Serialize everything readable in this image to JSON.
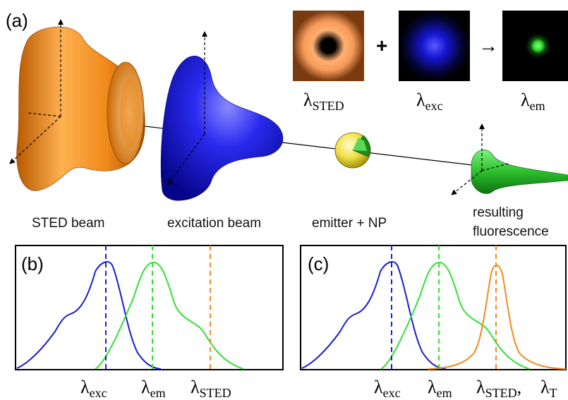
{
  "panels": {
    "a": "(a)",
    "b": "(b)",
    "c": "(c)"
  },
  "objects": {
    "sted_beam": "STED beam",
    "excitation_beam": "excitation beam",
    "emitter": "emitter + NP",
    "fluorescence_line1": "resulting",
    "fluorescence_line2": "fluorescence"
  },
  "psf_row": {
    "operator_plus": "+",
    "operator_arrow": "→",
    "labels": [
      {
        "symbol": "λ",
        "sub": "STED"
      },
      {
        "symbol": "λ",
        "sub": "exc"
      },
      {
        "symbol": "λ",
        "sub": "em"
      }
    ]
  },
  "spectra": {
    "b_labels": [
      {
        "symbol": "λ",
        "sub": "exc"
      },
      {
        "symbol": "λ",
        "sub": "em"
      },
      {
        "symbol": "λ",
        "sub": "STED"
      }
    ],
    "c_labels": [
      {
        "symbol": "λ",
        "sub": "exc"
      },
      {
        "symbol": "λ",
        "sub": "em"
      },
      {
        "symbol": "λ",
        "sub": "STED"
      },
      {
        "symbol": "λ",
        "sub": "T"
      }
    ],
    "c_label_separator": ","
  },
  "colors": {
    "sted": "#f28a1e",
    "excitation": "#1a1ad6",
    "emission": "#33e033",
    "frame": "#000000"
  },
  "chart_data": [
    {
      "type": "line",
      "panel": "b",
      "series": [],
      "markers": [
        "exc",
        "em",
        "STED"
      ],
      "grid": false
    },
    {
      "type": "line",
      "panel": "c",
      "series": [],
      "markers": [
        "exc",
        "em",
        "STED"
      ],
      "grid": false
    }
  ]
}
